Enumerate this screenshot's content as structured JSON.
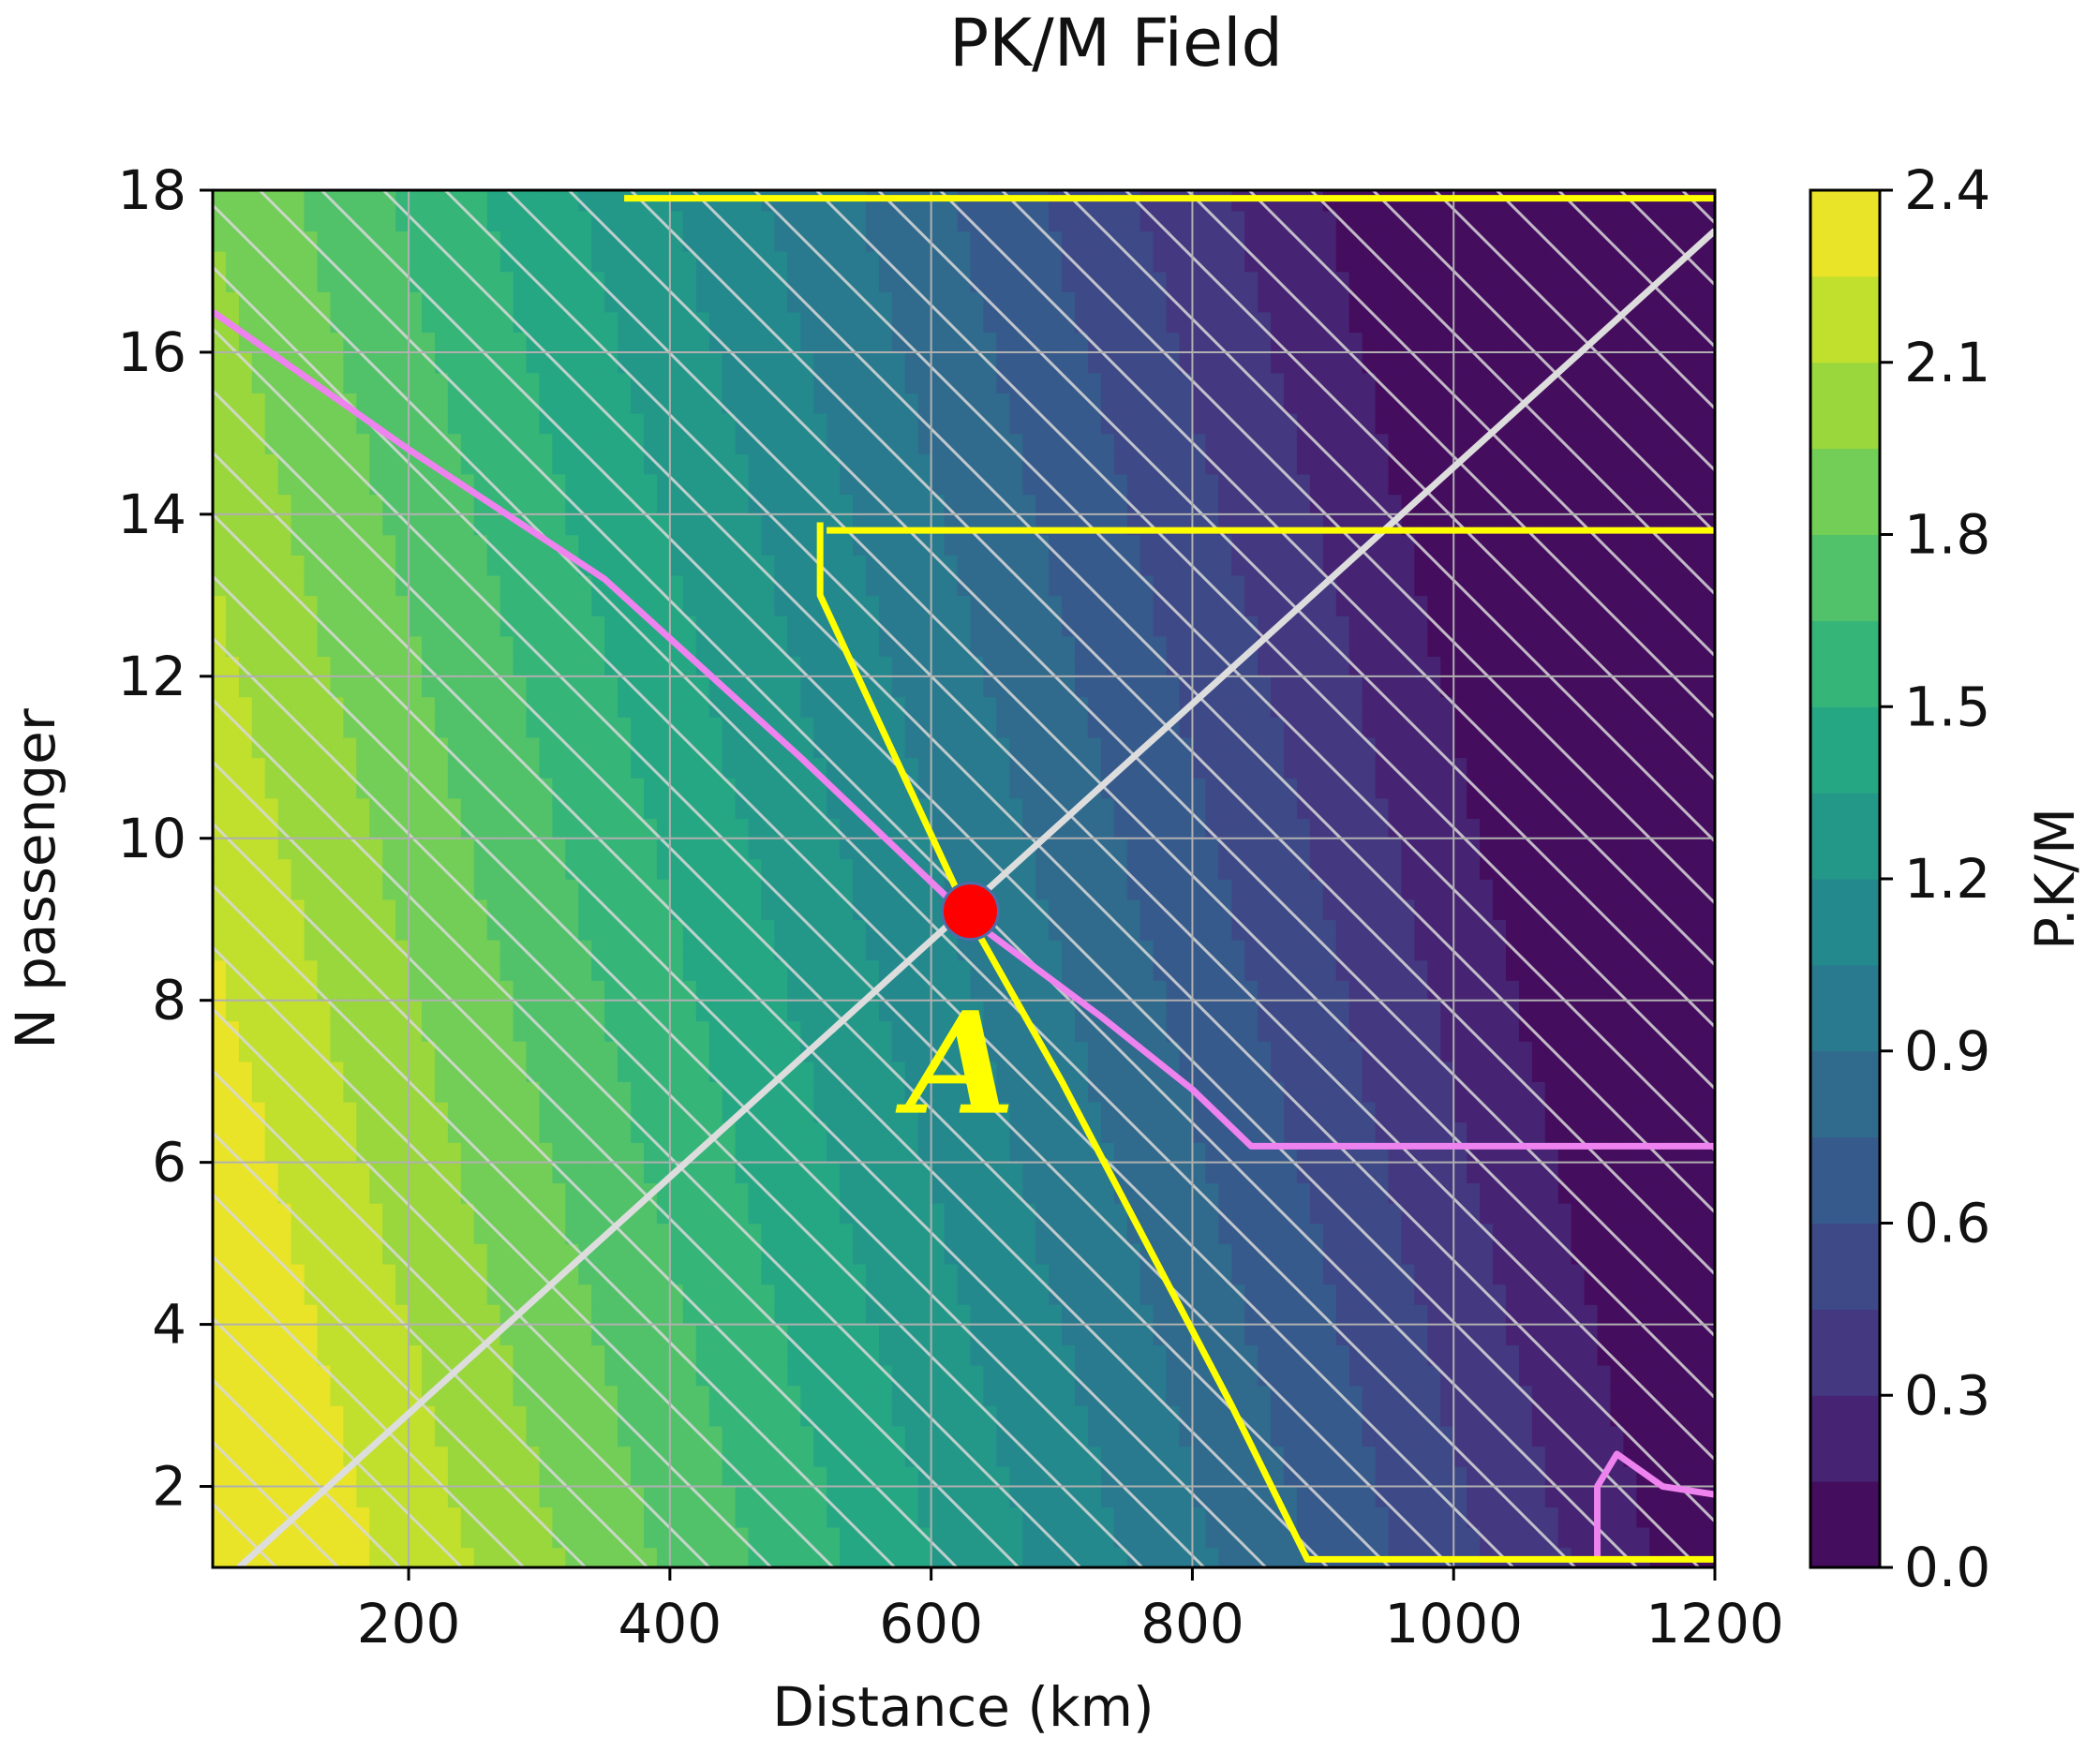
{
  "chart_data": {
    "type": "heatmap",
    "title": "PK/M Field",
    "xlabel": "Distance (km)",
    "ylabel": "N passenger",
    "xlim": [
      50,
      1200
    ],
    "ylim": [
      1,
      18
    ],
    "xticks": [
      200,
      400,
      600,
      800,
      1000,
      1200
    ],
    "xtick_labels": [
      "200",
      "400",
      "600",
      "800",
      "1000",
      "1200"
    ],
    "yticks": [
      2,
      4,
      6,
      8,
      10,
      12,
      14,
      16,
      18
    ],
    "ytick_labels": [
      "2",
      "4",
      "6",
      "8",
      "10",
      "12",
      "14",
      "16",
      "18"
    ],
    "grid": true,
    "colorbar": {
      "label": "P.K/M",
      "range": [
        0.0,
        2.4
      ],
      "ticks": [
        0.0,
        0.3,
        0.6,
        0.9,
        1.2,
        1.5,
        1.8,
        2.1,
        2.4
      ],
      "tick_labels": [
        "0.0",
        "0.3",
        "0.6",
        "0.9",
        "1.2",
        "1.5",
        "1.8",
        "2.1",
        "2.4"
      ],
      "levels": 16,
      "colormap": "viridis"
    },
    "field_model": "PK/M decreasing with distance and passenger count",
    "curves": [
      {
        "color": "#ee82ee",
        "points": [
          [
            50,
            16.5
          ],
          [
            200,
            14.8
          ],
          [
            350,
            13.2
          ],
          [
            500,
            11
          ],
          [
            630,
            9
          ],
          [
            730,
            7.8
          ],
          [
            800,
            6.9
          ],
          [
            845,
            6.2
          ],
          [
            1200,
            6.2
          ]
        ]
      },
      {
        "color": "#ee82ee",
        "points": [
          [
            1110,
            1.1
          ],
          [
            1110,
            2
          ],
          [
            1125,
            2.4
          ],
          [
            1160,
            2
          ],
          [
            1200,
            1.9
          ]
        ]
      },
      {
        "color": "#dddddd",
        "points": [
          [
            70,
            1
          ],
          [
            1200,
            17.5
          ]
        ]
      },
      {
        "color": "#ffff00",
        "points": [
          [
            515,
            13.9
          ],
          [
            515,
            13
          ],
          [
            630,
            9
          ],
          [
            700,
            7
          ],
          [
            830,
            3
          ],
          [
            888,
            1.1
          ],
          [
            1200,
            1.1
          ]
        ]
      },
      {
        "color": "#ffff00",
        "points": [
          [
            520,
            13.8
          ],
          [
            1200,
            13.8
          ]
        ]
      },
      {
        "color": "#ffff00",
        "points": [
          [
            365,
            17.9
          ],
          [
            1200,
            17.9
          ]
        ]
      }
    ],
    "points": [
      {
        "label": "A",
        "x": 630,
        "y": 9.1,
        "color": "#ff0000"
      }
    ]
  }
}
